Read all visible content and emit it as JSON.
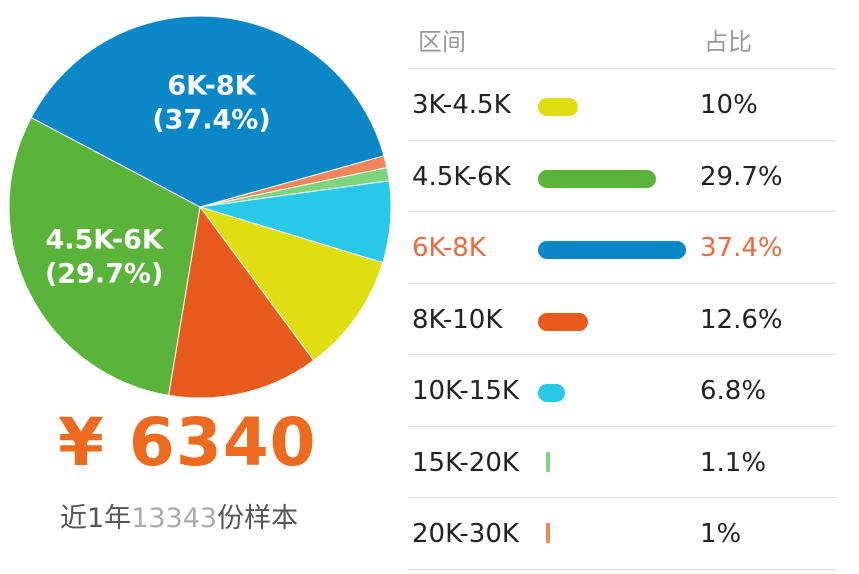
{
  "chart_data": {
    "type": "pie",
    "title": "",
    "table_headers": {
      "range": "区间",
      "share": "占比"
    },
    "slices": [
      {
        "label": "6K-8K",
        "value": 37.4,
        "pct_text": "37.4%",
        "color": "#0a87c6",
        "pie_text": "6K-8K",
        "pie_pct": "(37.4%)"
      },
      {
        "label": "20K-30K",
        "value": 1.0,
        "pct_text": "1%",
        "color": "#f0865a"
      },
      {
        "label": "15K-20K",
        "value": 1.1,
        "pct_text": "1.1%",
        "color": "#7dd47d"
      },
      {
        "label": "10K-15K",
        "value": 6.8,
        "pct_text": "6.8%",
        "color": "#28c8e8"
      },
      {
        "label": "3K-4.5K",
        "value": 10,
        "pct_text": "10%",
        "color": "#dede10"
      },
      {
        "label": "8K-10K",
        "value": 12.6,
        "pct_text": "12.6%",
        "color": "#e85a1e"
      },
      {
        "label": "4.5K-6K",
        "value": 29.7,
        "pct_text": "29.7%",
        "color": "#5ab43a",
        "pie_text": "4.5K-6K",
        "pie_pct": "(29.7%)"
      }
    ],
    "table_rows": [
      {
        "label": "3K-4.5K",
        "value": 10,
        "pct_text": "10%",
        "color": "#dede10",
        "highlight": false
      },
      {
        "label": "4.5K-6K",
        "value": 29.7,
        "pct_text": "29.7%",
        "color": "#5ab43a",
        "highlight": false
      },
      {
        "label": "6K-8K",
        "value": 37.4,
        "pct_text": "37.4%",
        "color": "#0a87c6",
        "highlight": true
      },
      {
        "label": "8K-10K",
        "value": 12.6,
        "pct_text": "12.6%",
        "color": "#e85a1e",
        "highlight": false
      },
      {
        "label": "10K-15K",
        "value": 6.8,
        "pct_text": "6.8%",
        "color": "#28c8e8",
        "highlight": false
      },
      {
        "label": "15K-20K",
        "value": 1.1,
        "pct_text": "1.1%",
        "color": "#7dd47d",
        "highlight": false
      },
      {
        "label": "20K-30K",
        "value": 1.0,
        "pct_text": "1%",
        "color": "#f0865a",
        "highlight": false
      }
    ]
  },
  "summary": {
    "salary": "¥ 6340",
    "sample_prefix": "近1年",
    "sample_count": "13343",
    "sample_suffix": "份样本"
  },
  "colors": {
    "accent": "#ee6a1e",
    "highlight_text": "#ee6a3c"
  }
}
